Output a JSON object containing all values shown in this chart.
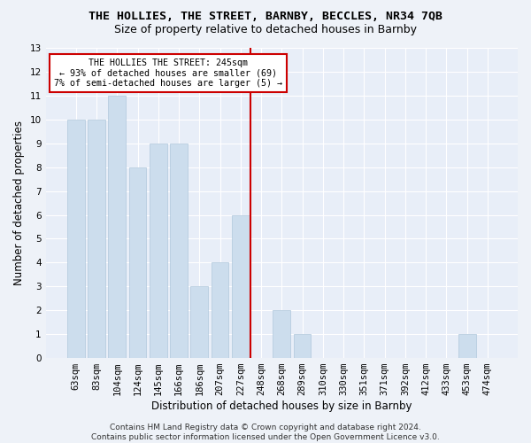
{
  "title_line1": "THE HOLLIES, THE STREET, BARNBY, BECCLES, NR34 7QB",
  "title_line2": "Size of property relative to detached houses in Barnby",
  "xlabel": "Distribution of detached houses by size in Barnby",
  "ylabel": "Number of detached properties",
  "categories": [
    "63sqm",
    "83sqm",
    "104sqm",
    "124sqm",
    "145sqm",
    "166sqm",
    "186sqm",
    "207sqm",
    "227sqm",
    "248sqm",
    "268sqm",
    "289sqm",
    "310sqm",
    "330sqm",
    "351sqm",
    "371sqm",
    "392sqm",
    "412sqm",
    "433sqm",
    "453sqm",
    "474sqm"
  ],
  "values": [
    10,
    10,
    11,
    8,
    9,
    9,
    3,
    4,
    6,
    0,
    2,
    1,
    0,
    0,
    0,
    0,
    0,
    0,
    0,
    1,
    0
  ],
  "bar_color": "#ccdded",
  "bar_edge_color": "#b0c8dc",
  "vline_x_idx": 9,
  "vline_color": "#cc0000",
  "annotation_text": "THE HOLLIES THE STREET: 245sqm\n← 93% of detached houses are smaller (69)\n7% of semi-detached houses are larger (5) →",
  "annotation_box_color": "#ffffff",
  "annotation_box_edge": "#cc0000",
  "ylim": [
    0,
    13
  ],
  "yticks": [
    0,
    1,
    2,
    3,
    4,
    5,
    6,
    7,
    8,
    9,
    10,
    11,
    12,
    13
  ],
  "footer_line1": "Contains HM Land Registry data © Crown copyright and database right 2024.",
  "footer_line2": "Contains public sector information licensed under the Open Government Licence v3.0.",
  "bg_color": "#eef2f8",
  "plot_bg_color": "#e8eef8",
  "grid_color": "#ffffff",
  "title_fontsize": 9.5,
  "subtitle_fontsize": 9,
  "label_fontsize": 8.5,
  "tick_fontsize": 7.5,
  "footer_fontsize": 6.5
}
